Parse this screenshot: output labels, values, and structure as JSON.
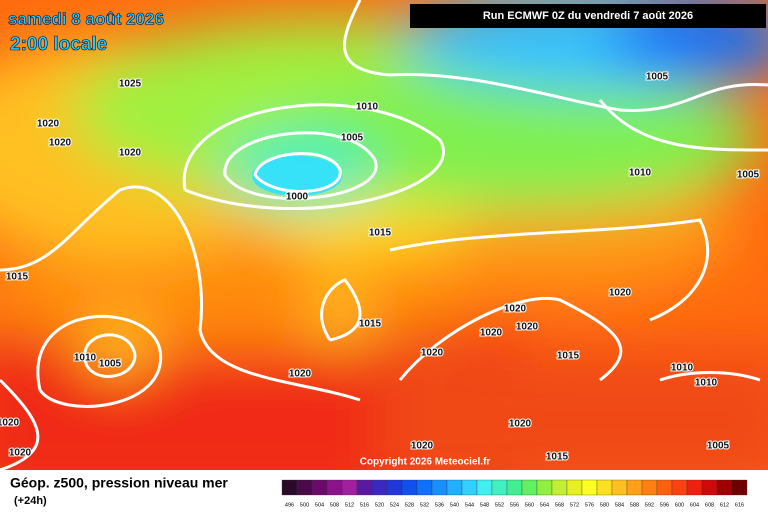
{
  "header": {
    "date": "samedi 8 août 2026",
    "time": "2:00 locale",
    "run": "Run ECMWF 0Z du vendredi 7 août 2026"
  },
  "map": {
    "isobar_labels": [
      1025,
      1020,
      1020,
      1020,
      1010,
      1005,
      1000,
      1015,
      1015,
      1015,
      1010,
      1005,
      1020,
      1020,
      1020,
      1020,
      1020,
      1015,
      1020,
      1010,
      1005,
      1005,
      1010,
      1010,
      1005,
      1020,
      1020,
      1015,
      1020,
      1020
    ],
    "copyright": "Copyright 2026 Meteociel.fr"
  },
  "legend": {
    "title": "Géop. z500, pression niveau mer",
    "lead": "(+24h)",
    "levels": [
      496,
      500,
      504,
      508,
      512,
      516,
      520,
      524,
      528,
      532,
      536,
      540,
      544,
      548,
      552,
      556,
      560,
      564,
      568,
      572,
      576,
      580,
      584,
      588,
      592,
      596,
      600,
      604,
      608,
      612,
      616
    ],
    "colors": [
      "#2a0a2a",
      "#4a0a4a",
      "#6a0a6a",
      "#8a128a",
      "#a020a0",
      "#5a1aa0",
      "#3a28c0",
      "#2038d8",
      "#1050f0",
      "#1070ff",
      "#1890ff",
      "#20b0ff",
      "#30d0ff",
      "#40f0f0",
      "#40f0c0",
      "#40f090",
      "#60f060",
      "#90f040",
      "#c0f030",
      "#e8f020",
      "#ffff20",
      "#ffe020",
      "#ffc020",
      "#ffa018",
      "#ff8010",
      "#ff6010",
      "#ff4010",
      "#f02010",
      "#d00808",
      "#a00000",
      "#700000"
    ]
  }
}
